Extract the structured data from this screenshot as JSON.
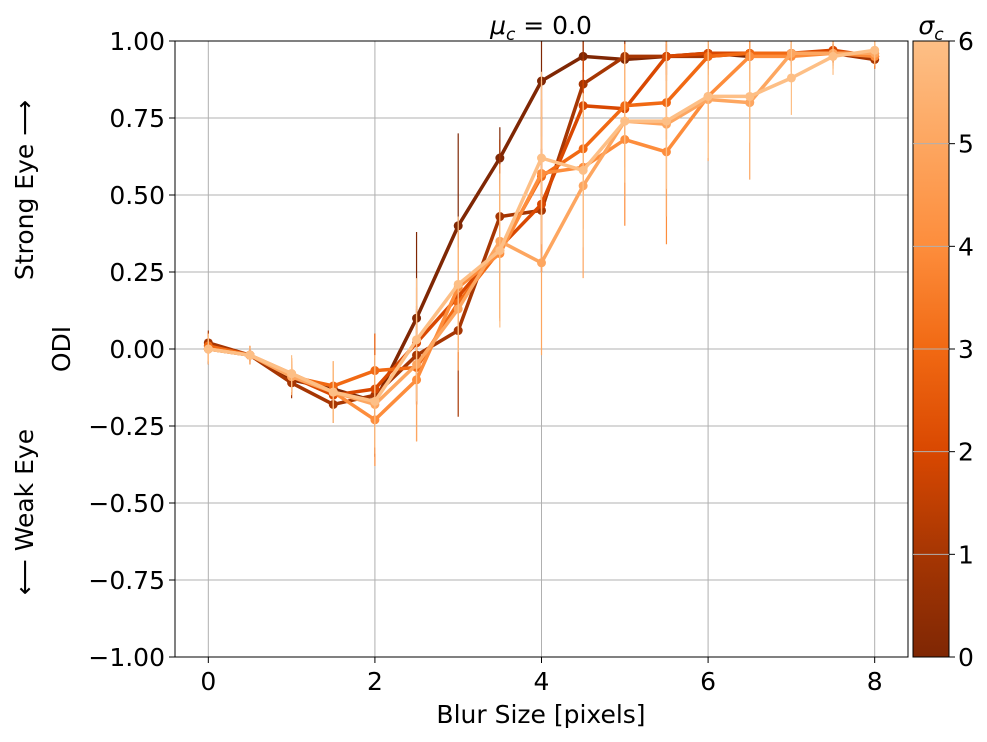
{
  "chart_data": {
    "type": "line",
    "title": "μc = 0.0",
    "title_parts": {
      "mu": "μ",
      "sub": "c",
      "rest": " = 0.0"
    },
    "xlabel": "Blur Size [pixels]",
    "ylabel": "ODI",
    "ylabel_top": "Strong Eye ⟶",
    "ylabel_bottom": "⟵ Weak Eye",
    "xlim": [
      -0.4,
      8.4
    ],
    "ylim": [
      -1.0,
      1.0
    ],
    "xticks": [
      0,
      2,
      4,
      6,
      8
    ],
    "xtick_labels": [
      "0",
      "2",
      "4",
      "6",
      "8"
    ],
    "yticks": [
      -1.0,
      -0.75,
      -0.5,
      -0.25,
      0.0,
      0.25,
      0.5,
      0.75,
      1.0
    ],
    "ytick_labels": [
      "−1.00",
      "−0.75",
      "−0.50",
      "−0.25",
      "0.00",
      "0.25",
      "0.50",
      "0.75",
      "1.00"
    ],
    "grid": true,
    "x": [
      0,
      0.5,
      1,
      1.5,
      2,
      2.5,
      3,
      3.5,
      4,
      4.5,
      5,
      5.5,
      6,
      6.5,
      7,
      7.5,
      8
    ],
    "series": [
      {
        "sigma": 0,
        "color": "#7f2704",
        "values": [
          0.0,
          -0.02,
          -0.1,
          -0.13,
          -0.17,
          0.1,
          0.4,
          0.62,
          0.87,
          0.95,
          0.94,
          0.95,
          0.96,
          0.95,
          0.96,
          0.96,
          0.95
        ],
        "errors": [
          0.05,
          0.02,
          0.04,
          0.05,
          0.08,
          0.28,
          0.3,
          0.1,
          0.18,
          0.05,
          0.05,
          0.04,
          0.03,
          0.03,
          0.03,
          0.03,
          0.03
        ]
      },
      {
        "sigma": 1,
        "color": "#a63603",
        "values": [
          0.02,
          -0.02,
          -0.11,
          -0.18,
          -0.15,
          -0.02,
          0.06,
          0.43,
          0.45,
          0.86,
          0.95,
          0.95,
          0.95,
          0.96,
          0.96,
          0.96,
          0.94
        ],
        "errors": [
          0.04,
          0.02,
          0.05,
          0.06,
          0.2,
          0.15,
          0.28,
          0.25,
          0.2,
          0.15,
          0.08,
          0.06,
          0.04,
          0.03,
          0.03,
          0.03,
          0.03
        ]
      },
      {
        "sigma": 2,
        "color": "#d94801",
        "values": [
          0.01,
          -0.02,
          -0.09,
          -0.15,
          -0.13,
          0.02,
          0.17,
          0.33,
          0.47,
          0.79,
          0.78,
          0.95,
          0.96,
          0.96,
          0.96,
          0.97,
          0.95
        ],
        "errors": [
          0.04,
          0.03,
          0.04,
          0.06,
          0.1,
          0.12,
          0.15,
          0.2,
          0.22,
          0.15,
          0.1,
          0.08,
          0.05,
          0.04,
          0.03,
          0.03,
          0.03
        ]
      },
      {
        "sigma": 3,
        "color": "#f16913",
        "values": [
          0.01,
          -0.02,
          -0.09,
          -0.12,
          -0.07,
          -0.06,
          0.15,
          0.32,
          0.56,
          0.65,
          0.79,
          0.8,
          0.95,
          0.96,
          0.96,
          0.96,
          0.96
        ],
        "errors": [
          0.04,
          0.03,
          0.05,
          0.08,
          0.12,
          0.12,
          0.18,
          0.22,
          0.25,
          0.15,
          0.2,
          0.12,
          0.06,
          0.05,
          0.04,
          0.03,
          0.03
        ]
      },
      {
        "sigma": 4,
        "color": "#fd8d3c",
        "values": [
          0.0,
          -0.02,
          -0.08,
          -0.14,
          -0.23,
          -0.1,
          0.2,
          0.31,
          0.57,
          0.59,
          0.68,
          0.64,
          0.82,
          0.95,
          0.95,
          0.96,
          0.95
        ],
        "errors": [
          0.04,
          0.03,
          0.05,
          0.09,
          0.15,
          0.2,
          0.18,
          0.22,
          0.3,
          0.2,
          0.28,
          0.3,
          0.15,
          0.08,
          0.05,
          0.04,
          0.04
        ]
      },
      {
        "sigma": 5,
        "color": "#fda660",
        "values": [
          0.0,
          -0.02,
          -0.09,
          -0.14,
          -0.18,
          -0.05,
          0.13,
          0.35,
          0.28,
          0.53,
          0.74,
          0.73,
          0.81,
          0.8,
          0.96,
          0.96,
          0.96
        ],
        "errors": [
          0.04,
          0.03,
          0.06,
          0.1,
          0.16,
          0.25,
          0.2,
          0.25,
          0.3,
          0.3,
          0.25,
          0.3,
          0.2,
          0.25,
          0.08,
          0.05,
          0.04
        ]
      },
      {
        "sigma": 6,
        "color": "#fdbf86",
        "values": [
          0.0,
          -0.02,
          -0.08,
          -0.14,
          -0.17,
          0.03,
          0.21,
          0.32,
          0.62,
          0.58,
          0.74,
          0.74,
          0.82,
          0.82,
          0.88,
          0.95,
          0.97
        ],
        "errors": [
          0.05,
          0.03,
          0.06,
          0.1,
          0.15,
          0.2,
          0.22,
          0.25,
          0.28,
          0.25,
          0.2,
          0.22,
          0.2,
          0.15,
          0.12,
          0.06,
          0.04
        ]
      }
    ],
    "colorbar": {
      "label": "σc",
      "label_parts": {
        "sigma": "σ",
        "sub": "c"
      },
      "range": [
        0,
        6
      ],
      "ticks": [
        "0",
        "1",
        "2",
        "3",
        "4",
        "5",
        "6"
      ],
      "colormap": "Oranges_r",
      "colors": [
        "#7f2704",
        "#a63603",
        "#d94801",
        "#f16913",
        "#fd8d3c",
        "#fda660",
        "#fdbf86"
      ]
    }
  }
}
